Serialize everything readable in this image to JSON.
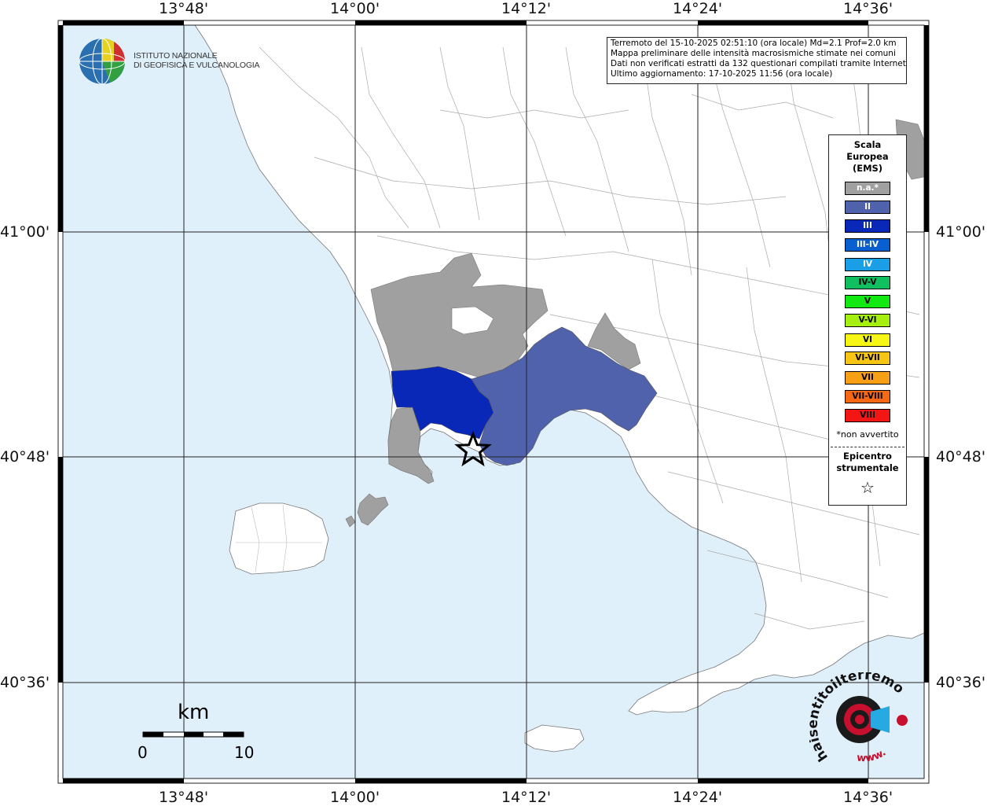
{
  "map": {
    "top_ticks": [
      "13°48'",
      "14°00'",
      "14°12'",
      "14°24'",
      "14°36'"
    ],
    "bottom_ticks": [
      "13°48'",
      "14°00'",
      "14°12'",
      "14°24'",
      "14°36'"
    ],
    "left_ticks": [
      "41°00'",
      "40°48'",
      "40°36'"
    ],
    "right_ticks": [
      "41°00'",
      "40°48'",
      "40°36'"
    ],
    "colors": {
      "sea": "#e0f0fa",
      "land": "#ffffff",
      "na": "#a0a0a0",
      "II": "#5062ac",
      "III": "#0a28b8"
    }
  },
  "info": {
    "line1": "Terremoto del 15-10-2025 02:51:10 (ora locale) Md=2.1 Prof=2.0 km",
    "line2": "Mappa preliminare delle intensità macrosismiche stimate nei comuni",
    "line3": "Dati non verificati estratti da 132 questionari compilati tramite Internet.",
    "line4": "Ultimo aggiornamento: 17-10-2025 11:56 (ora locale)"
  },
  "logo": {
    "line1": "ISTITUTO NAZIONALE",
    "line2": "DI GEOFISICA E VULCANOLOGIA"
  },
  "legend": {
    "title_line1": "Scala",
    "title_line2": "Europea",
    "title_line3": "(EMS)",
    "items": [
      {
        "label": "n.a.*",
        "color": "#a0a0a0"
      },
      {
        "label": "II",
        "color": "#5062ac"
      },
      {
        "label": "III",
        "color": "#0a28b8"
      },
      {
        "label": "III-IV",
        "color": "#0a5fd0"
      },
      {
        "label": "IV",
        "color": "#1a9fe6"
      },
      {
        "label": "IV-V",
        "color": "#10c060"
      },
      {
        "label": "V",
        "color": "#12e812"
      },
      {
        "label": "V-VI",
        "color": "#a6f010"
      },
      {
        "label": "VI",
        "color": "#f7f715"
      },
      {
        "label": "VI-VII",
        "color": "#f7c615"
      },
      {
        "label": "VII",
        "color": "#f7a015"
      },
      {
        "label": "VII-VIII",
        "color": "#f76815"
      },
      {
        "label": "VIII",
        "color": "#f41515"
      }
    ],
    "note": "*non avvertito",
    "epicenter_line1": "Epicentro",
    "epicenter_line2": "strumentale",
    "epicenter_symbol": "☆"
  },
  "scale_bar": {
    "unit": "km",
    "start": "0",
    "end": "10"
  },
  "brand": {
    "text": "haisentitoilterremoto.it",
    "url_part": "www."
  }
}
